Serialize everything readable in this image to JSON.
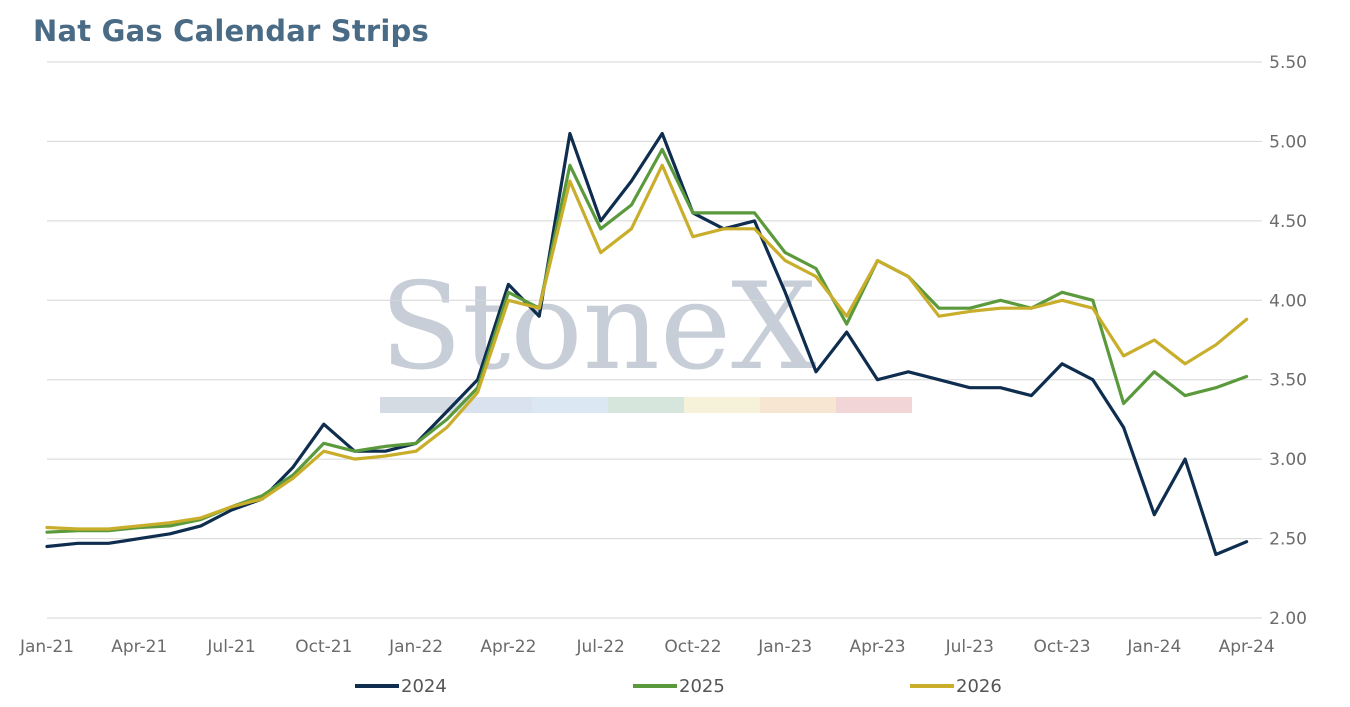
{
  "chart_data": {
    "type": "line",
    "title": "Nat Gas Calendar Strips",
    "ylim": [
      2.0,
      5.5
    ],
    "y_ticks": [
      "5.50",
      "5.00",
      "4.50",
      "4.00",
      "3.50",
      "3.00",
      "2.50",
      "2.00"
    ],
    "y_tick_values": [
      5.5,
      5.0,
      4.5,
      4.0,
      3.5,
      3.0,
      2.5,
      2.0
    ],
    "x_ticks": [
      "Jan-21",
      "Apr-21",
      "Jul-21",
      "Oct-21",
      "Jan-22",
      "Apr-22",
      "Jul-22",
      "Oct-22",
      "Jan-23",
      "Apr-23",
      "Jul-23",
      "Oct-23",
      "Jan-24",
      "Apr-24"
    ],
    "grid": true,
    "legend_placement": "bottom",
    "watermark": "StoneX",
    "x": [
      "2021-01",
      "2021-02",
      "2021-03",
      "2021-04",
      "2021-05",
      "2021-06",
      "2021-07",
      "2021-08",
      "2021-09",
      "2021-10",
      "2021-11",
      "2021-12",
      "2022-01",
      "2022-02",
      "2022-03",
      "2022-04",
      "2022-05",
      "2022-06",
      "2022-07",
      "2022-08",
      "2022-09",
      "2022-10",
      "2022-11",
      "2022-12",
      "2023-01",
      "2023-02",
      "2023-03",
      "2023-04",
      "2023-05",
      "2023-06",
      "2023-07",
      "2023-08",
      "2023-09",
      "2023-10",
      "2023-11",
      "2023-12",
      "2024-01",
      "2024-02",
      "2024-03",
      "2024-04"
    ],
    "series": [
      {
        "name": "2024",
        "color": "#0e2d4f",
        "values": [
          2.45,
          2.47,
          2.47,
          2.5,
          2.53,
          2.58,
          2.68,
          2.75,
          2.95,
          3.22,
          3.05,
          3.05,
          3.1,
          3.3,
          3.5,
          4.1,
          3.9,
          5.05,
          4.5,
          4.75,
          5.05,
          4.55,
          4.45,
          4.5,
          4.05,
          3.55,
          3.8,
          3.5,
          3.55,
          3.5,
          3.45,
          3.45,
          3.4,
          3.6,
          3.5,
          3.2,
          2.65,
          3.0,
          2.4,
          2.48
        ]
      },
      {
        "name": "2025",
        "color": "#5b9a3c",
        "values": [
          2.54,
          2.55,
          2.55,
          2.57,
          2.58,
          2.62,
          2.7,
          2.77,
          2.9,
          3.1,
          3.05,
          3.08,
          3.1,
          3.25,
          3.45,
          4.05,
          3.95,
          4.85,
          4.45,
          4.6,
          4.95,
          4.55,
          4.55,
          4.55,
          4.3,
          4.2,
          3.85,
          4.25,
          4.15,
          3.95,
          3.95,
          4.0,
          3.95,
          4.05,
          4.0,
          3.35,
          3.55,
          3.4,
          3.45,
          3.52
        ]
      },
      {
        "name": "2026",
        "color": "#c9ae2c",
        "values": [
          2.57,
          2.56,
          2.56,
          2.58,
          2.6,
          2.63,
          2.7,
          2.75,
          2.88,
          3.05,
          3.0,
          3.02,
          3.05,
          3.2,
          3.42,
          4.0,
          3.95,
          4.75,
          4.3,
          4.45,
          4.85,
          4.4,
          4.45,
          4.45,
          4.25,
          4.15,
          3.9,
          4.25,
          4.15,
          3.9,
          3.93,
          3.95,
          3.95,
          4.0,
          3.95,
          3.65,
          3.75,
          3.6,
          3.72,
          3.88
        ]
      }
    ]
  }
}
